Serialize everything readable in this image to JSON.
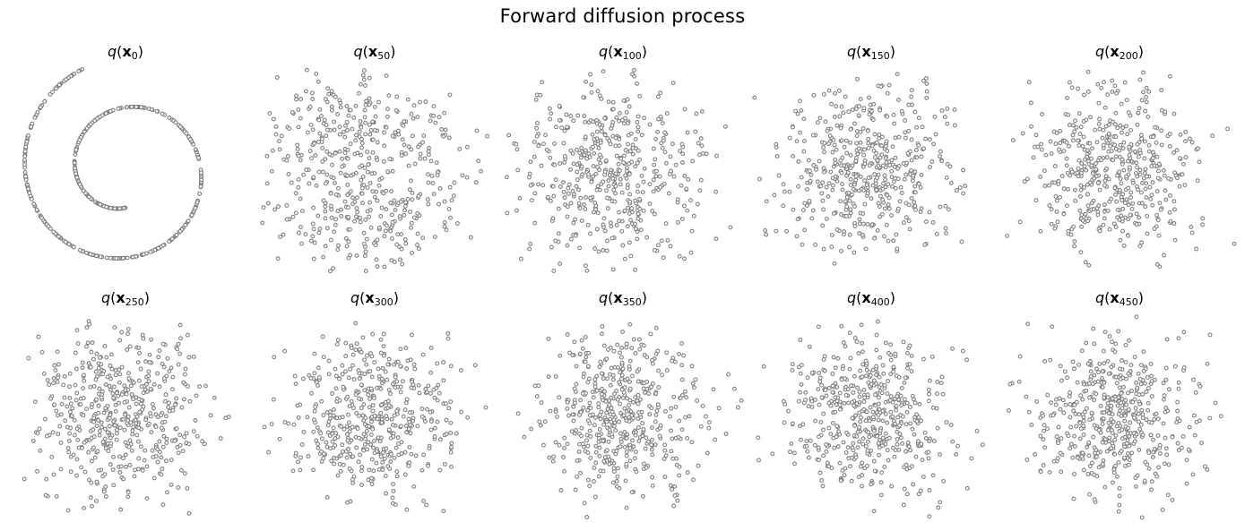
{
  "title": "Forward diffusion process",
  "marker": {
    "stroke": "#808080",
    "fill": "#ffffff"
  },
  "chart_data": [
    {
      "type": "scatter",
      "title_prefix": "q(x",
      "step": "0",
      "xlim": [
        -11,
        11
      ],
      "ylim": [
        -11,
        11
      ],
      "grid": false,
      "axis": "off"
    },
    {
      "type": "scatter",
      "title_prefix": "q(x",
      "step": "50",
      "xlim": [
        -11,
        11
      ],
      "ylim": [
        -11,
        11
      ],
      "grid": false,
      "axis": "off"
    },
    {
      "type": "scatter",
      "title_prefix": "q(x",
      "step": "100",
      "xlim": [
        -11,
        11
      ],
      "ylim": [
        -11,
        11
      ],
      "grid": false,
      "axis": "off"
    },
    {
      "type": "scatter",
      "title_prefix": "q(x",
      "step": "150",
      "xlim": [
        -11,
        11
      ],
      "ylim": [
        -11,
        11
      ],
      "grid": false,
      "axis": "off"
    },
    {
      "type": "scatter",
      "title_prefix": "q(x",
      "step": "200",
      "xlim": [
        -11,
        11
      ],
      "ylim": [
        -11,
        11
      ],
      "grid": false,
      "axis": "off"
    },
    {
      "type": "scatter",
      "title_prefix": "q(x",
      "step": "250",
      "xlim": [
        -11,
        11
      ],
      "ylim": [
        -11,
        11
      ],
      "grid": false,
      "axis": "off"
    },
    {
      "type": "scatter",
      "title_prefix": "q(x",
      "step": "300",
      "xlim": [
        -11,
        11
      ],
      "ylim": [
        -11,
        11
      ],
      "grid": false,
      "axis": "off"
    },
    {
      "type": "scatter",
      "title_prefix": "q(x",
      "step": "350",
      "xlim": [
        -11,
        11
      ],
      "ylim": [
        -11,
        11
      ],
      "grid": false,
      "axis": "off"
    },
    {
      "type": "scatter",
      "title_prefix": "q(x",
      "step": "400",
      "xlim": [
        -11,
        11
      ],
      "ylim": [
        -11,
        11
      ],
      "grid": false,
      "axis": "off"
    },
    {
      "type": "scatter",
      "title_prefix": "q(x",
      "step": "450",
      "xlim": [
        -11,
        11
      ],
      "ylim": [
        -11,
        11
      ],
      "grid": false,
      "axis": "off"
    }
  ]
}
